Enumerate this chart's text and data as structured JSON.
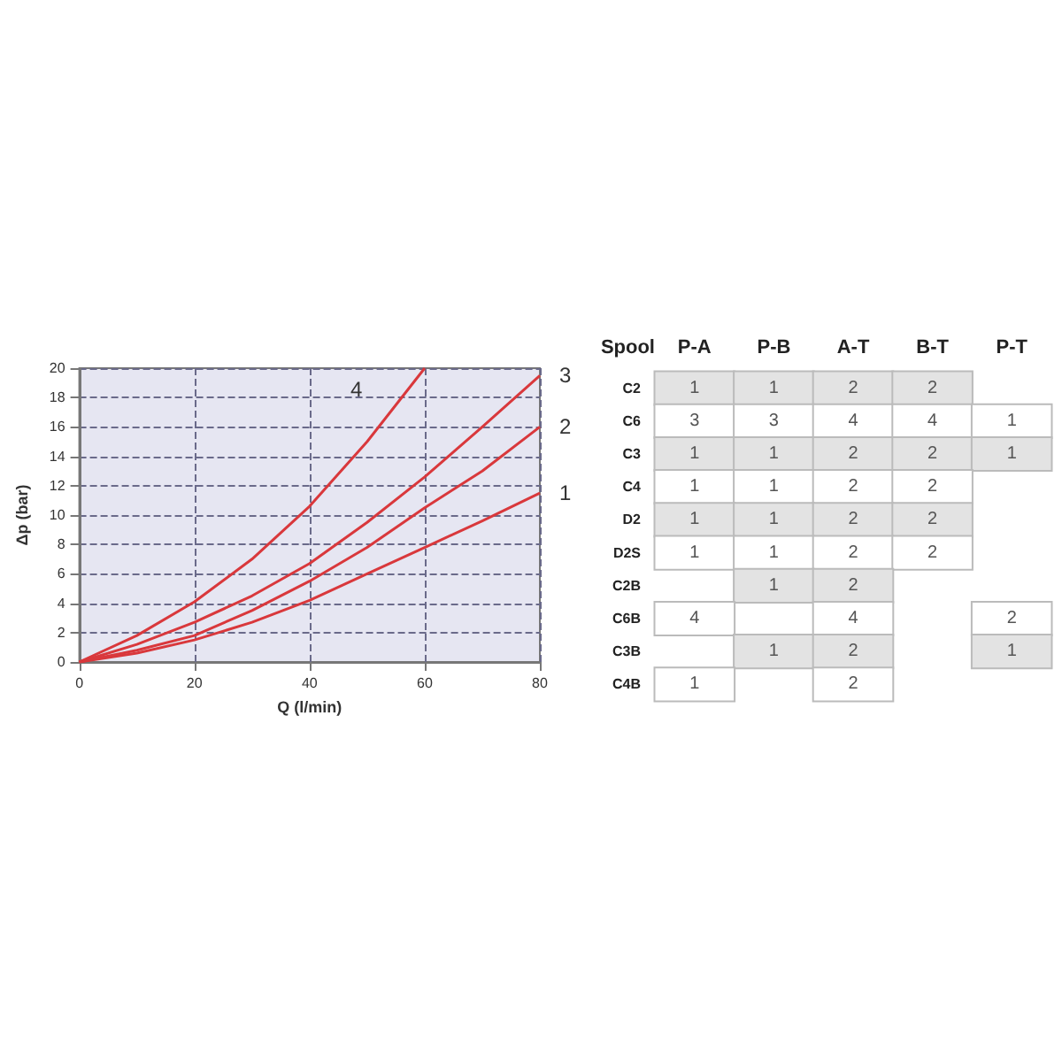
{
  "chart_data": [
    {
      "type": "line",
      "xlabel": "Q (l/min)",
      "ylabel": "Δp (bar)",
      "xlim": [
        0,
        80
      ],
      "ylim": [
        0,
        20
      ],
      "xticks": [
        0,
        20,
        40,
        60,
        80
      ],
      "yticks": [
        0,
        2,
        4,
        6,
        8,
        10,
        12,
        14,
        16,
        18,
        20
      ],
      "grid": true,
      "line_style": "solid",
      "marker": "none",
      "series": [
        {
          "name": "1",
          "color": "#d9383c",
          "x": [
            0,
            10,
            20,
            30,
            40,
            50,
            60,
            70,
            80
          ],
          "values": [
            0,
            0.6,
            1.5,
            2.7,
            4.2,
            6,
            7.8,
            9.6,
            11.5
          ]
        },
        {
          "name": "2",
          "color": "#d9383c",
          "x": [
            0,
            10,
            20,
            30,
            40,
            50,
            60,
            70,
            80
          ],
          "values": [
            0,
            0.8,
            1.8,
            3.5,
            5.5,
            7.8,
            10.5,
            13,
            16
          ]
        },
        {
          "name": "3",
          "color": "#d9383c",
          "x": [
            0,
            10,
            20,
            30,
            40,
            50,
            60,
            70,
            80
          ],
          "values": [
            0,
            1.2,
            2.7,
            4.5,
            6.7,
            9.5,
            12.6,
            16,
            19.5
          ]
        },
        {
          "name": "4",
          "color": "#d9383c",
          "x": [
            0,
            10,
            20,
            30,
            40,
            50,
            60
          ],
          "values": [
            0,
            1.8,
            4.1,
            7,
            10.6,
            15,
            20
          ]
        }
      ]
    },
    {
      "type": "heatmap",
      "ylabel": "Spool",
      "categories": [
        "P-A",
        "P-B",
        "A-T",
        "B-T",
        "P-T"
      ],
      "y_categories": [
        "C2",
        "C6",
        "C3",
        "C4",
        "D2",
        "D2S",
        "C2B",
        "C6B",
        "C3B",
        "C4B"
      ],
      "cells": [
        [
          1,
          1,
          2,
          2,
          null
        ],
        [
          3,
          3,
          4,
          4,
          1
        ],
        [
          1,
          1,
          2,
          2,
          1
        ],
        [
          1,
          1,
          2,
          2,
          null
        ],
        [
          1,
          1,
          2,
          2,
          null
        ],
        [
          1,
          1,
          2,
          2,
          null
        ],
        [
          null,
          1,
          2,
          null,
          null
        ],
        [
          4,
          null,
          4,
          null,
          2
        ],
        [
          null,
          1,
          2,
          null,
          1
        ],
        [
          1,
          null,
          2,
          null,
          null
        ]
      ],
      "data_labels": true
    }
  ]
}
